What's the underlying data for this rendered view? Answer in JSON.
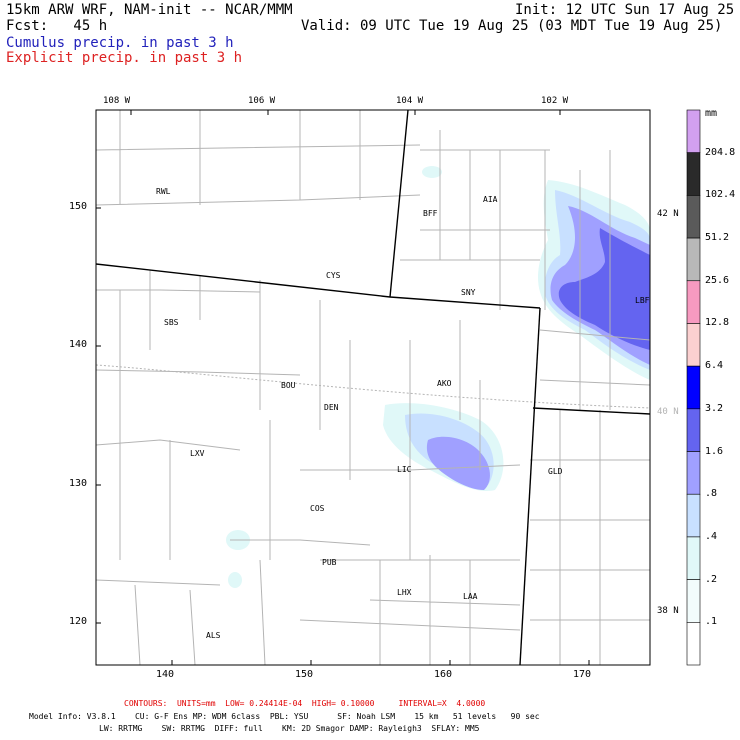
{
  "header": {
    "model_title": "15km ARW WRF, NAM-init -- NCAR/MMM",
    "init_time": "Init: 12 UTC Sun 17 Aug 25",
    "forecast_hour": "Fcst:   45 h",
    "valid_time": "Valid: 09 UTC Tue 19 Aug 25 (03 MDT Tue 19 Aug 25)",
    "cumulus_label": "Cumulus precip. in past 3 h",
    "explicit_label": "Explicit precip. in past 3 h"
  },
  "colors": {
    "cumulus_label": "#2222bb",
    "explicit_label": "#dd2222",
    "border_grey": "#b4b4b4",
    "state_border": "#000000",
    "contour_text": "#e00000"
  },
  "map": {
    "top_axis_labels": [
      "108 W",
      "106 W",
      "104 W",
      "102 W"
    ],
    "left_axis_labels": [
      "150",
      "140",
      "130",
      "120"
    ],
    "bottom_axis_labels": [
      "140",
      "150",
      "160",
      "170"
    ],
    "right_lat_labels": [
      "42 N",
      "40 N",
      "38 N"
    ],
    "stations": [
      {
        "id": "RWL"
      },
      {
        "id": "BFF"
      },
      {
        "id": "AIA"
      },
      {
        "id": "CYS"
      },
      {
        "id": "SNY"
      },
      {
        "id": "LBF"
      },
      {
        "id": "SBS"
      },
      {
        "id": "BOU"
      },
      {
        "id": "AKO"
      },
      {
        "id": "DEN"
      },
      {
        "id": "LXV"
      },
      {
        "id": "LIC"
      },
      {
        "id": "GLD"
      },
      {
        "id": "COS"
      },
      {
        "id": "PUB"
      },
      {
        "id": "LHX"
      },
      {
        "id": "LAA"
      },
      {
        "id": "ALS"
      }
    ]
  },
  "colorbar": {
    "unit": "mm",
    "levels": [
      {
        "label": "204.8",
        "color": "#d2a0f0"
      },
      {
        "label": "102.4",
        "color": "#2a2a2a"
      },
      {
        "label": "51.2",
        "color": "#5a5a5a"
      },
      {
        "label": "25.6",
        "color": "#b8b8b8"
      },
      {
        "label": "12.8",
        "color": "#f79ac0"
      },
      {
        "label": "6.4",
        "color": "#fbd0d0"
      },
      {
        "label": "3.2",
        "color": "#0000ff"
      },
      {
        "label": "1.6",
        "color": "#6464f0"
      },
      {
        "label": ".8",
        "color": "#a0a0ff"
      },
      {
        "label": ".4",
        "color": "#c8e0ff"
      },
      {
        "label": ".2",
        "color": "#e0f8f8"
      },
      {
        "label": ".1",
        "color": "#f2fcfc"
      },
      {
        "label": "",
        "color": "#ffffff"
      }
    ]
  },
  "footer": {
    "contours": "CONTOURS:  UNITS=mm  LOW= 0.24414E-04  HIGH= 0.10000     INTERVAL=X  4.0000",
    "model_info_1": "Model Info: V3.8.1    CU: G-F Ens MP: WDM 6class  PBL: YSU      SF: Noah LSM    15 km   51 levels   90 sec",
    "model_info_2": "LW: RRTMG    SW: RRTMG  DIFF: full    KM: 2D Smagor DAMP: Rayleigh3  SFLAY: MM5"
  }
}
